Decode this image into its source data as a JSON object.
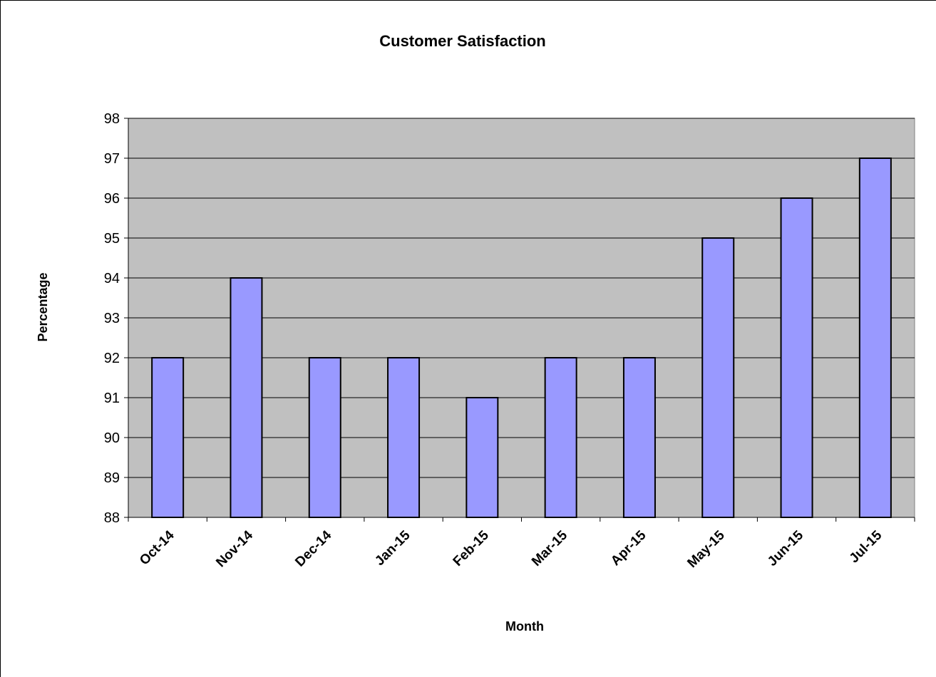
{
  "chart_data": {
    "type": "bar",
    "title": "Customer Satisfaction",
    "xlabel": "Month",
    "ylabel": "Percentage",
    "categories": [
      "Oct-14",
      "Nov-14",
      "Dec-14",
      "Jan-15",
      "Feb-15",
      "Mar-15",
      "Apr-15",
      "May-15",
      "Jun-15",
      "Jul-15"
    ],
    "values": [
      92,
      94,
      92,
      92,
      91,
      92,
      92,
      95,
      96,
      97
    ],
    "ylim": [
      88,
      98
    ],
    "yticks": [
      "88",
      "89",
      "90",
      "91",
      "92",
      "93",
      "94",
      "95",
      "96",
      "97",
      "98"
    ],
    "grid": "horizontal",
    "legend": "none",
    "colors": {
      "bar_fill": "#9999ff",
      "bar_stroke": "#000000",
      "plot_background": "#c0c0c0",
      "gridline": "#000000"
    }
  }
}
